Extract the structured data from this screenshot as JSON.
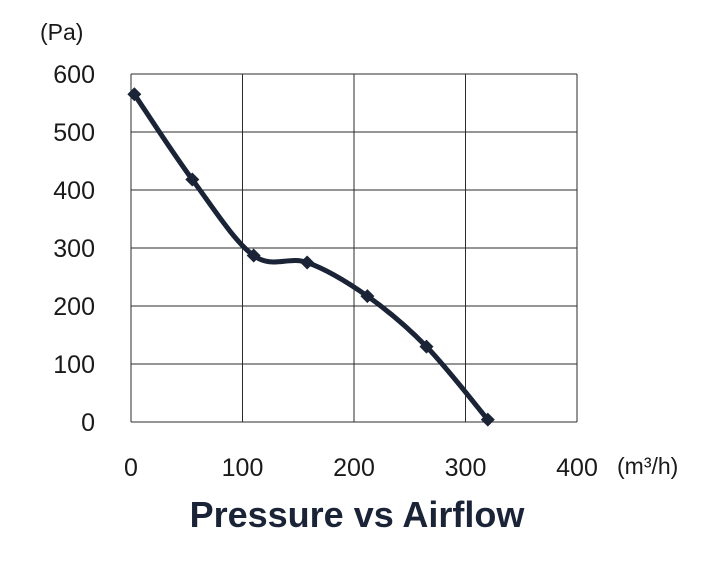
{
  "chart_data": {
    "type": "line",
    "title": "Pressure vs Airflow",
    "y_unit": "(Pa)",
    "x_unit": "(m³/h)",
    "xlim": [
      0,
      400
    ],
    "ylim": [
      0,
      600
    ],
    "x_ticks": [
      "0",
      "100",
      "200",
      "300",
      "400"
    ],
    "y_ticks": [
      "600",
      "500",
      "400",
      "300",
      "200",
      "100",
      "0"
    ],
    "grid": true,
    "series": [
      {
        "x": [
          3,
          55,
          110,
          158,
          212,
          265,
          320
        ],
        "y": [
          565,
          418,
          287,
          275,
          217,
          130,
          4
        ],
        "marker": "diamond",
        "color": "#1a2436"
      }
    ]
  }
}
